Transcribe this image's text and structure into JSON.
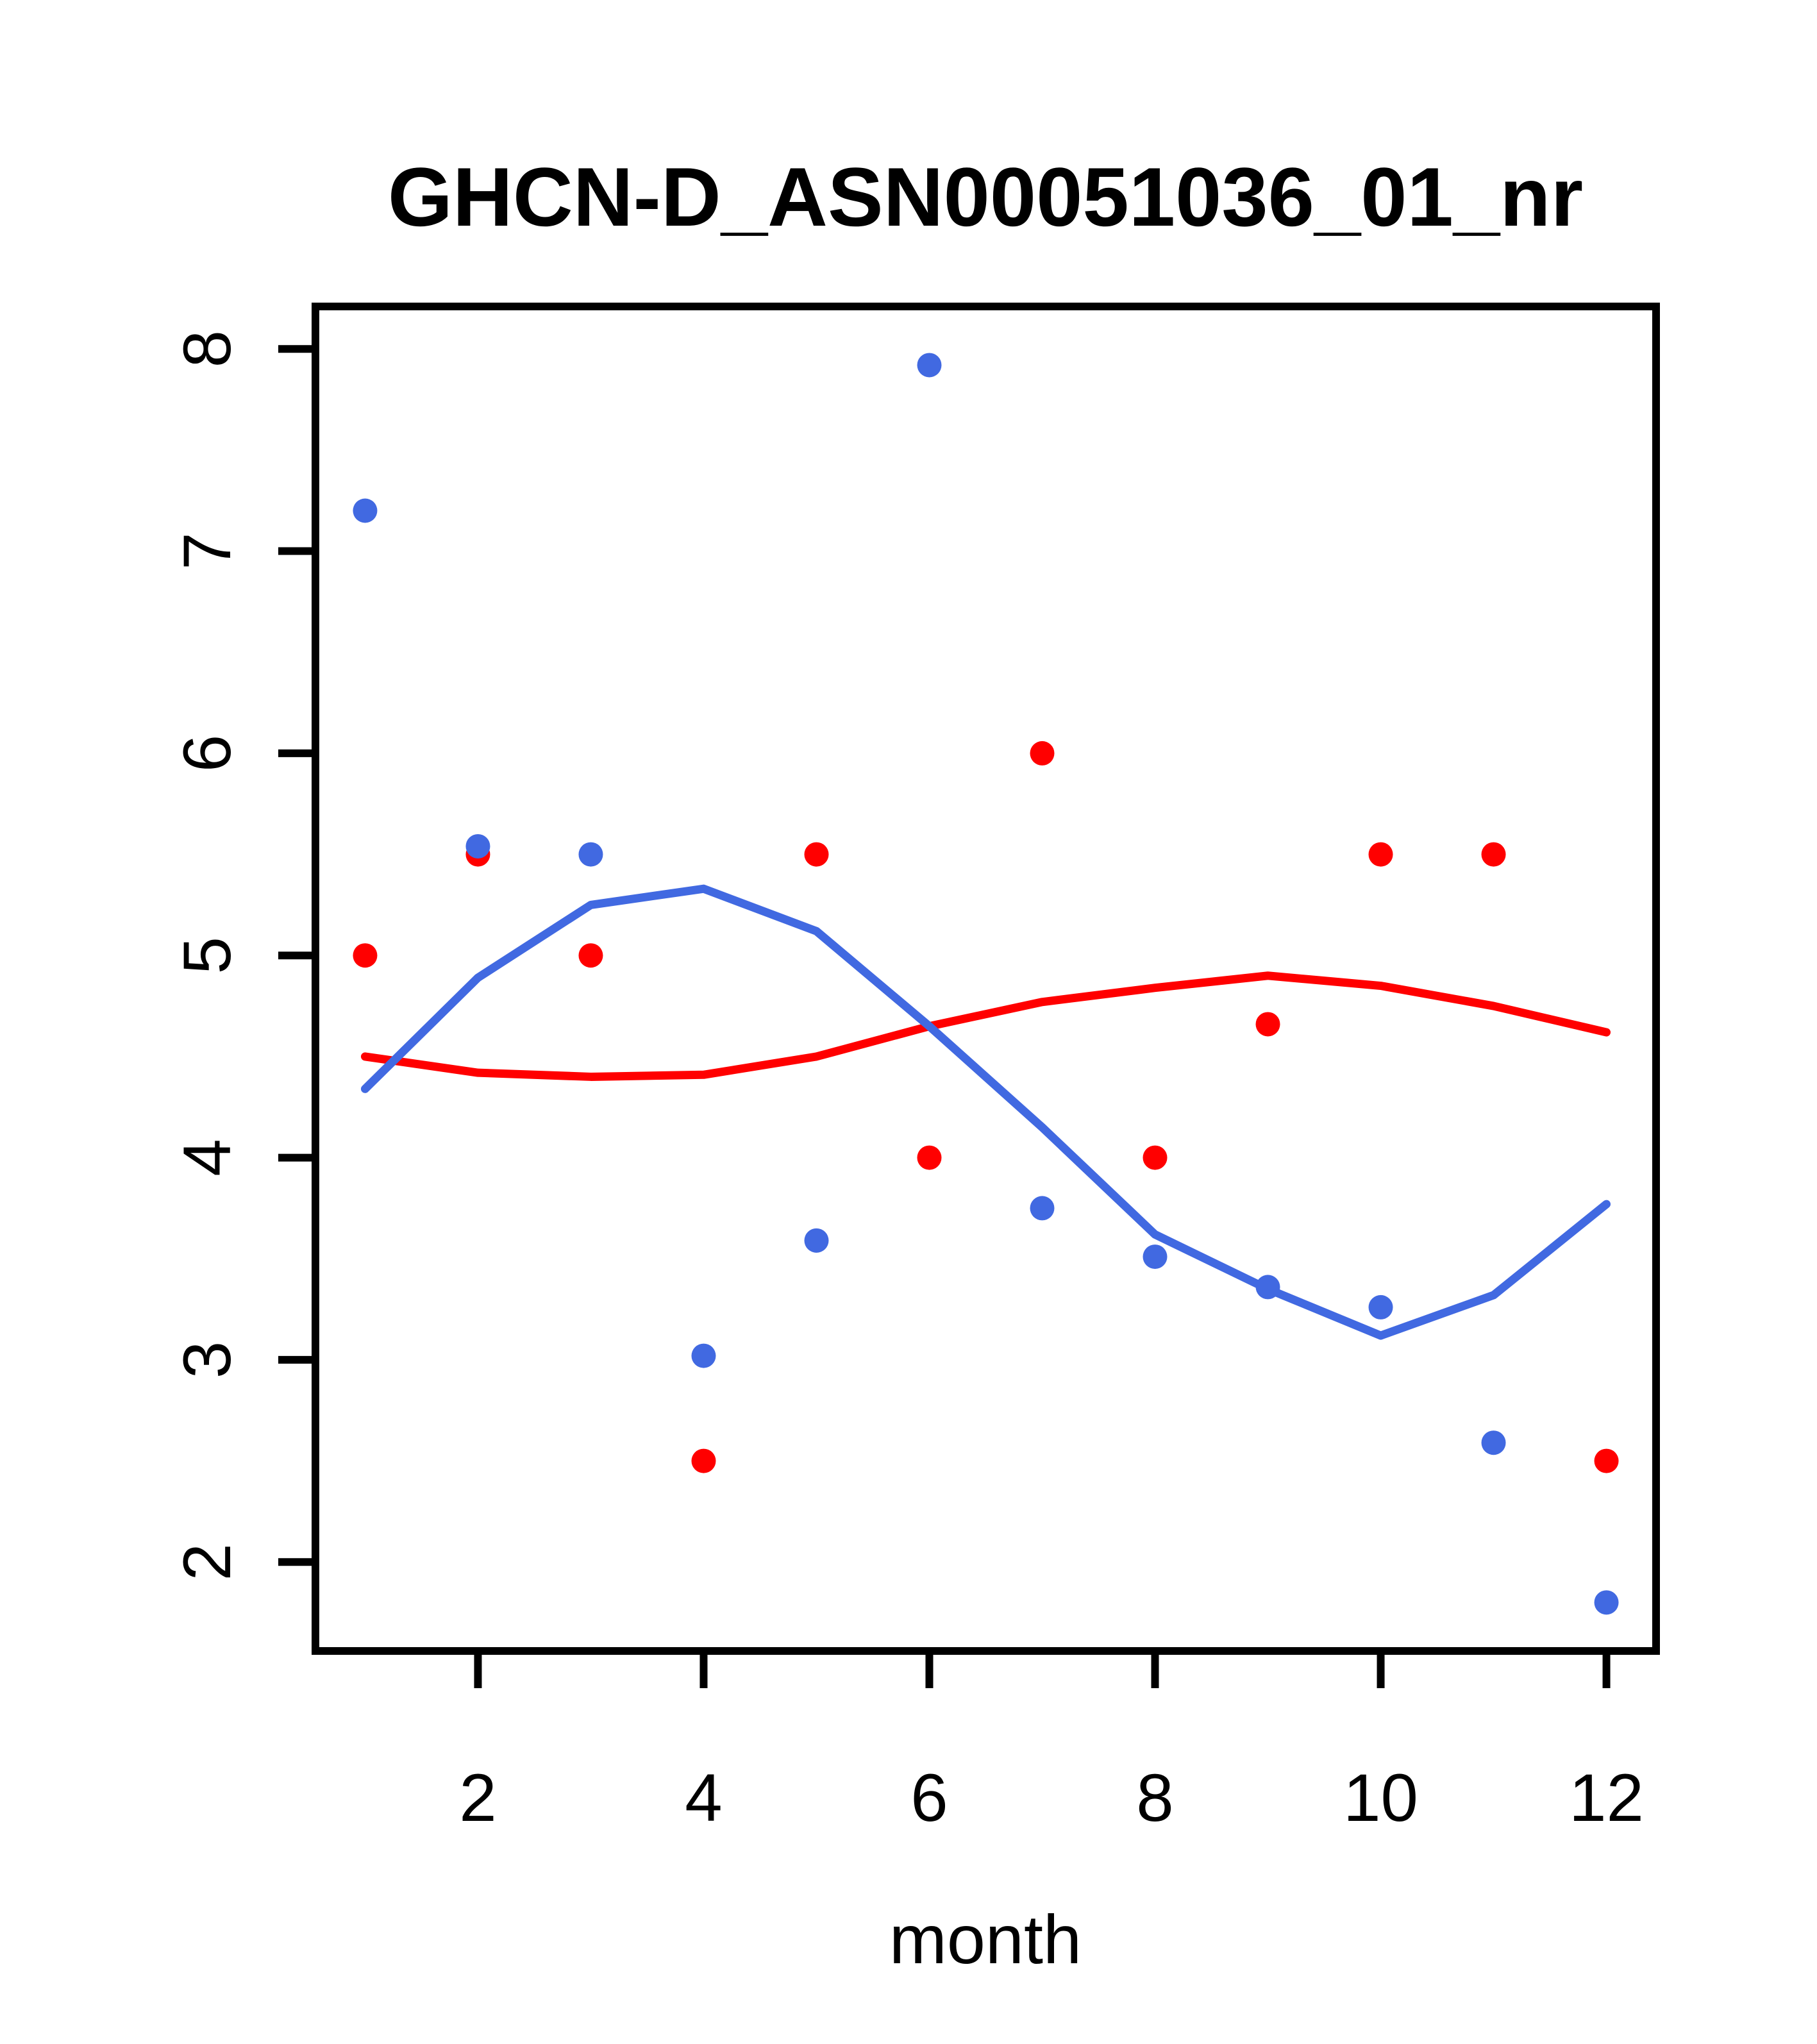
{
  "chart_data": {
    "type": "scatter",
    "title": "GHCN-D_ASN00051036_01_nr",
    "xlabel": "month",
    "ylabel": "",
    "xlim": [
      0.56,
      12.44
    ],
    "ylim": [
      1.56,
      8.21
    ],
    "x_ticks": [
      2,
      4,
      6,
      8,
      10,
      12
    ],
    "y_ticks": [
      2,
      3,
      4,
      5,
      6,
      7,
      8
    ],
    "grid": "off",
    "legend": "none",
    "x": [
      1,
      2,
      3,
      4,
      5,
      6,
      7,
      8,
      9,
      10,
      11,
      12
    ],
    "series": [
      {
        "name": "red-loess-line",
        "mark": "line",
        "color": "#FF0000",
        "values": [
          4.5,
          4.42,
          4.4,
          4.41,
          4.5,
          4.65,
          4.77,
          4.84,
          4.9,
          4.85,
          4.75,
          4.62
        ]
      },
      {
        "name": "blue-loess-line",
        "mark": "line",
        "color": "#4169E1",
        "values": [
          4.34,
          4.89,
          5.25,
          5.33,
          5.12,
          4.65,
          4.15,
          3.62,
          3.35,
          3.12,
          3.32,
          3.77
        ]
      },
      {
        "name": "red-points",
        "mark": "point",
        "color": "#FF0000",
        "values": [
          5.0,
          5.5,
          5.0,
          2.5,
          5.5,
          4.0,
          6.0,
          4.0,
          4.66,
          5.5,
          5.5,
          2.5
        ]
      },
      {
        "name": "blue-points",
        "mark": "point",
        "color": "#4169E1",
        "values": [
          7.2,
          5.54,
          5.5,
          3.02,
          3.59,
          7.92,
          3.75,
          3.51,
          3.36,
          3.26,
          2.59,
          1.8
        ]
      }
    ],
    "colors": {
      "blue": "#4169E1",
      "red": "#FF0000",
      "axis": "#000000",
      "background": "#ffffff"
    }
  }
}
